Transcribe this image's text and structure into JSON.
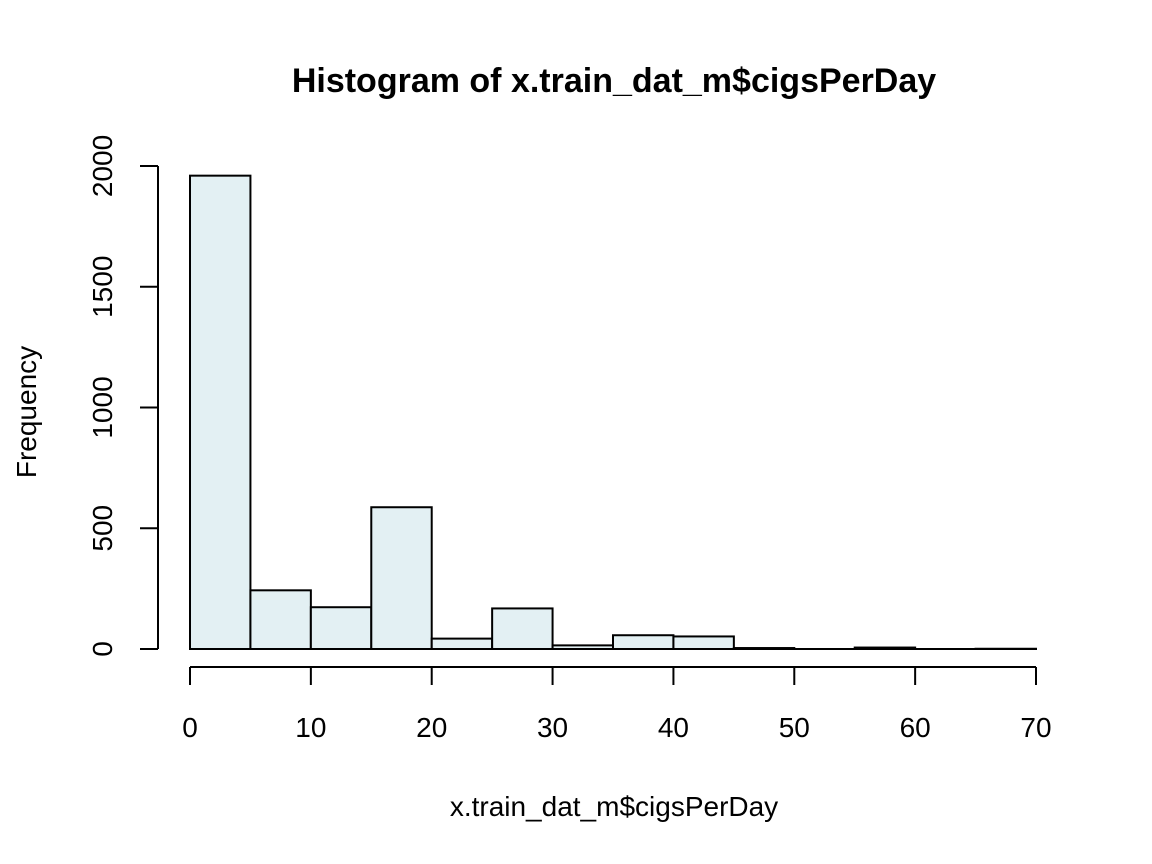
{
  "chart_data": {
    "type": "bar",
    "title": "Histogram of x.train_dat_m$cigsPerDay",
    "xlabel": "x.train_dat_m$cigsPerDay",
    "ylabel": "Frequency",
    "bins": [
      {
        "x0": 0,
        "x1": 5,
        "count": 1960
      },
      {
        "x0": 5,
        "x1": 10,
        "count": 243
      },
      {
        "x0": 10,
        "x1": 15,
        "count": 173
      },
      {
        "x0": 15,
        "x1": 20,
        "count": 587
      },
      {
        "x0": 20,
        "x1": 25,
        "count": 43
      },
      {
        "x0": 25,
        "x1": 30,
        "count": 168
      },
      {
        "x0": 30,
        "x1": 35,
        "count": 15
      },
      {
        "x0": 35,
        "x1": 40,
        "count": 57
      },
      {
        "x0": 40,
        "x1": 45,
        "count": 52
      },
      {
        "x0": 45,
        "x1": 50,
        "count": 4
      },
      {
        "x0": 50,
        "x1": 55,
        "count": 0
      },
      {
        "x0": 55,
        "x1": 60,
        "count": 6
      },
      {
        "x0": 60,
        "x1": 65,
        "count": 0
      },
      {
        "x0": 65,
        "x1": 70,
        "count": 1
      }
    ],
    "xlim": [
      0,
      70
    ],
    "ylim": [
      0,
      2000
    ],
    "xticks": [
      "0",
      "10",
      "20",
      "30",
      "40",
      "50",
      "60",
      "70"
    ],
    "yticks": [
      "0",
      "500",
      "1000",
      "1500",
      "2000"
    ],
    "grid": false,
    "bar_color": "#e3f0f3",
    "edge_color": "#000000"
  }
}
